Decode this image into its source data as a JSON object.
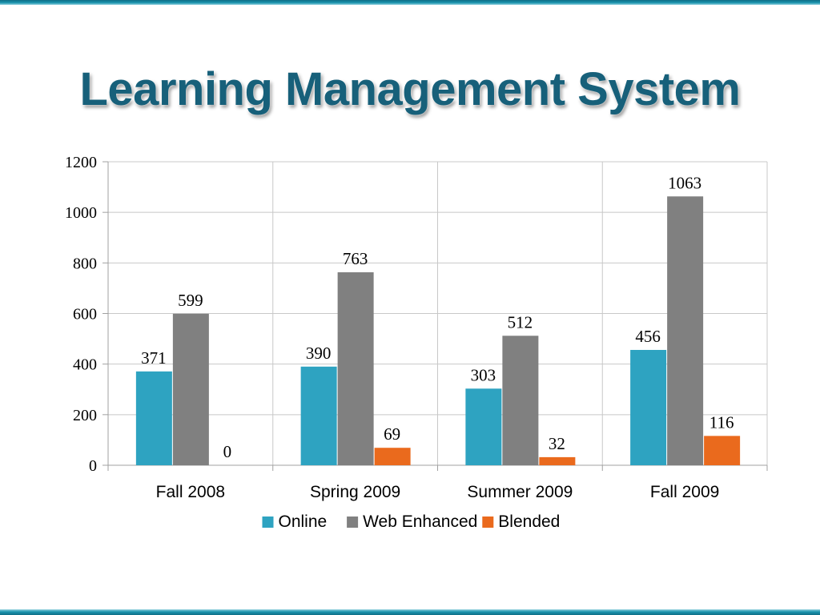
{
  "slide": {
    "title": "Learning Management System"
  },
  "colors": {
    "accent_band": "#1a93ad",
    "title": "#17607a",
    "grid": "#c8c8c8",
    "axis": "#a0a0a0"
  },
  "chart_data": {
    "type": "bar",
    "title": "",
    "xlabel": "",
    "ylabel": "",
    "ylim": [
      0,
      1200
    ],
    "yticks": [
      0,
      200,
      400,
      600,
      800,
      1000,
      1200
    ],
    "categories": [
      "Fall 2008",
      "Spring 2009",
      "Summer 2009",
      "Fall 2009"
    ],
    "series": [
      {
        "name": "Online",
        "color": "#2ea3c1",
        "values": [
          371,
          390,
          303,
          456
        ]
      },
      {
        "name": "Web Enhanced",
        "color": "#808080",
        "values": [
          599,
          763,
          512,
          1063
        ]
      },
      {
        "name": "Blended",
        "color": "#ea6a1d",
        "values": [
          0,
          69,
          32,
          116
        ]
      }
    ],
    "legend_position": "bottom",
    "grid": true,
    "data_labels": true
  }
}
